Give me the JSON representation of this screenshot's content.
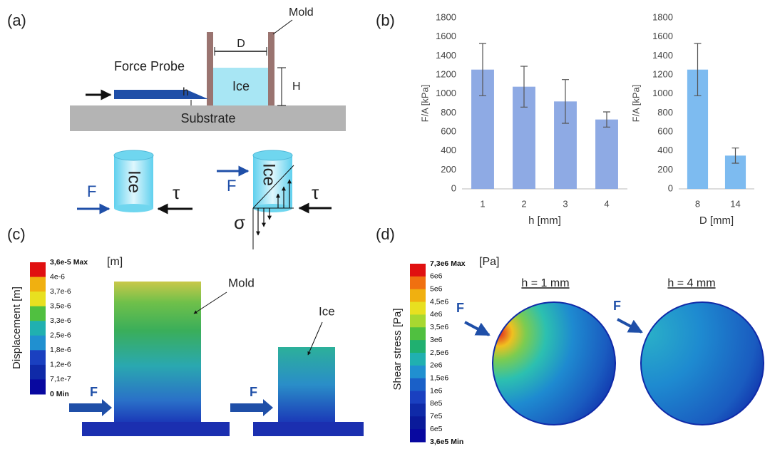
{
  "panel_a": {
    "label": "(a)",
    "mold": "Mold",
    "d": "D",
    "force_probe": "Force Probe",
    "ice": "Ice",
    "h_cap": "H",
    "h": "h",
    "substrate": "Substrate",
    "cyl1": {
      "ice": "Ice",
      "f": "F",
      "tau": "τ"
    },
    "cyl2": {
      "ice": "Ice",
      "f": "F",
      "tau": "τ",
      "sigma": "σ"
    }
  },
  "panel_b_label": "(b)",
  "chart_data": [
    {
      "type": "bar",
      "categories": [
        "1",
        "2",
        "3",
        "4"
      ],
      "values": [
        1255,
        1075,
        920,
        730
      ],
      "errors": [
        275,
        215,
        230,
        80
      ],
      "color": "#8eaae4",
      "ylim": [
        0,
        1800
      ],
      "yticks": [
        0,
        200,
        400,
        600,
        800,
        1000,
        1200,
        1400,
        1600,
        1800
      ],
      "x_label": "h [mm]",
      "y_label": "F/A [kPa]",
      "grid": false
    },
    {
      "type": "bar",
      "categories": [
        "8",
        "14"
      ],
      "values": [
        1255,
        350
      ],
      "errors": [
        275,
        80
      ],
      "color": "#7dbbf0",
      "ylim": [
        0,
        1800
      ],
      "yticks": [
        0,
        200,
        400,
        600,
        800,
        1000,
        1200,
        1400,
        1600,
        1800
      ],
      "x_label": "D [mm]",
      "y_label": "F/A [kPa]",
      "grid": false
    }
  ],
  "panel_c": {
    "label": "(c)",
    "colorbar": {
      "labels": [
        "3,6e-5 Max",
        "4e-6",
        "3,7e-6",
        "3,5e-6",
        "3,3e-6",
        "2,5e-6",
        "1,8e-6",
        "1,2e-6",
        "7,1e-7",
        "0 Min"
      ],
      "unit": "[m]",
      "title": "Displacement [m]"
    },
    "mold": "Mold",
    "ice": "Ice",
    "f1": "F",
    "f2": "F"
  },
  "panel_d": {
    "label": "(d)",
    "colorbar": {
      "labels": [
        "7,3e6 Max",
        "6e6",
        "5e6",
        "4,5e6",
        "4e6",
        "3,5e6",
        "3e6",
        "2,5e6",
        "2e6",
        "1,5e6",
        "1e6",
        "8e5",
        "7e5",
        "6e5",
        "3,6e5 Min"
      ],
      "unit": "[Pa]",
      "title": "Shear stress [Pa]"
    },
    "h1": "h = 1 mm",
    "h4": "h = 4 mm",
    "f1": "F",
    "f2": "F"
  }
}
